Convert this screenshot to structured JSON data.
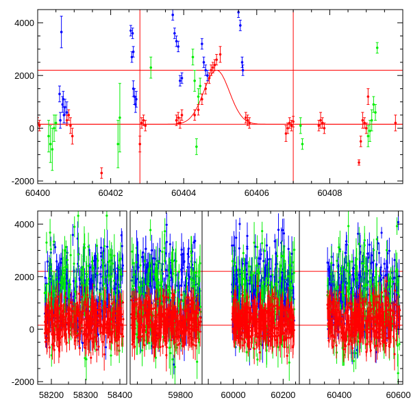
{
  "chart_data": [
    {
      "type": "scatter",
      "xlim": [
        60400,
        60410
      ],
      "ylim": [
        -2100,
        4500
      ],
      "x_ticks": [
        60400,
        60402,
        60404,
        60406,
        60408
      ],
      "x_tick_labels": [
        "60400",
        "60402",
        "60404",
        "60406",
        "60408"
      ],
      "y_ticks": [
        -2000,
        0,
        2000,
        4000
      ],
      "y_tick_labels": [
        "-2000",
        "0",
        "2000",
        "4000"
      ],
      "grid": false,
      "colors": {
        "red": "#ff0000",
        "green": "#00ee00",
        "blue": "#0000ff"
      },
      "reference_lines": {
        "horizontal": [
          2200,
          150
        ],
        "vertical": [
          60402.8,
          60407.0
        ]
      },
      "model_curve": {
        "baseline": 150,
        "peak": 2200,
        "center": 60404.9,
        "width": 0.35
      },
      "series": [
        {
          "color": "blue",
          "points": [
            [
              60400.65,
              3650,
              600
            ],
            [
              60400.6,
              1300,
              300
            ],
            [
              60400.7,
              1100,
              300
            ],
            [
              60400.75,
              800,
              300
            ],
            [
              60400.8,
              600,
              400
            ],
            [
              60400.62,
              300,
              300
            ],
            [
              60400.68,
              900,
              300
            ],
            [
              60400.72,
              500,
              300
            ],
            [
              60402.55,
              3700,
              200
            ],
            [
              60402.6,
              3600,
              200
            ],
            [
              60402.62,
              2900,
              200
            ],
            [
              60402.58,
              2700,
              200
            ],
            [
              60402.62,
              1500,
              300
            ],
            [
              60402.65,
              1200,
              300
            ],
            [
              60402.7,
              1100,
              300
            ],
            [
              60402.68,
              900,
              300
            ],
            [
              60403.7,
              4300,
              200
            ],
            [
              60403.75,
              3600,
              200
            ],
            [
              60403.8,
              3300,
              200
            ],
            [
              60403.85,
              3100,
              200
            ],
            [
              60403.9,
              1800,
              200
            ],
            [
              60403.95,
              1900,
              200
            ],
            [
              60404.5,
              3200,
              200
            ],
            [
              60404.55,
              2500,
              200
            ],
            [
              60404.6,
              2200,
              200
            ],
            [
              60404.65,
              2000,
              200
            ],
            [
              60405.5,
              4400,
              200
            ],
            [
              60405.55,
              3900,
              200
            ],
            [
              60405.6,
              2500,
              200
            ],
            [
              60405.62,
              2200,
              200
            ]
          ]
        },
        {
          "color": "green",
          "points": [
            [
              60400.3,
              -300,
              600
            ],
            [
              60400.35,
              -600,
              700
            ],
            [
              60400.4,
              -800,
              800
            ],
            [
              60400.45,
              0,
              500
            ],
            [
              60400.5,
              200,
              300
            ],
            [
              60402.2,
              -600,
              900
            ],
            [
              60402.25,
              400,
              1300
            ],
            [
              60403.1,
              2300,
              400
            ],
            [
              60404.25,
              2700,
              300
            ],
            [
              60404.3,
              1800,
              400
            ],
            [
              60404.35,
              -700,
              300
            ],
            [
              60404.4,
              1200,
              300
            ],
            [
              60404.45,
              1600,
              300
            ],
            [
              60407.2,
              100,
              300
            ],
            [
              60407.25,
              -600,
              200
            ],
            [
              60409.2,
              900,
              300
            ],
            [
              60409.25,
              600,
              300
            ],
            [
              60409.15,
              300,
              400
            ],
            [
              60409.1,
              -100,
              400
            ],
            [
              60409.05,
              -300,
              400
            ],
            [
              60409.3,
              3050,
              200
            ]
          ]
        },
        {
          "color": "red",
          "points": [
            [
              60400.0,
              200,
              200
            ],
            [
              60400.05,
              100,
              200
            ],
            [
              60400.8,
              300,
              200
            ],
            [
              60400.85,
              500,
              200
            ],
            [
              60400.9,
              100,
              300
            ],
            [
              60400.95,
              -300,
              300
            ],
            [
              60401.75,
              -1700,
              200
            ],
            [
              60402.8,
              -600,
              300
            ],
            [
              60402.85,
              200,
              200
            ],
            [
              60402.9,
              300,
              200
            ],
            [
              60402.95,
              100,
              200
            ],
            [
              60403.8,
              300,
              200
            ],
            [
              60403.85,
              400,
              200
            ],
            [
              60403.9,
              200,
              200
            ],
            [
              60403.95,
              500,
              200
            ],
            [
              60404.3,
              500,
              200
            ],
            [
              60404.4,
              700,
              200
            ],
            [
              60404.5,
              1100,
              200
            ],
            [
              60404.6,
              1500,
              200
            ],
            [
              60404.7,
              1900,
              200
            ],
            [
              60404.75,
              2200,
              200
            ],
            [
              60404.8,
              2300,
              200
            ],
            [
              60404.85,
              2400,
              200
            ],
            [
              60404.9,
              2600,
              200
            ],
            [
              60405.0,
              2800,
              300
            ],
            [
              60405.7,
              400,
              200
            ],
            [
              60405.75,
              300,
              200
            ],
            [
              60405.8,
              200,
              200
            ],
            [
              60406.8,
              -200,
              300
            ],
            [
              60406.85,
              0,
              200
            ],
            [
              60406.9,
              200,
              200
            ],
            [
              60406.95,
              100,
              200
            ],
            [
              60407.0,
              250,
              200
            ],
            [
              60407.7,
              100,
              200
            ],
            [
              60407.75,
              300,
              300
            ],
            [
              60407.8,
              200,
              200
            ],
            [
              60407.85,
              0,
              200
            ],
            [
              60408.8,
              -1300,
              100
            ],
            [
              60408.85,
              -500,
              200
            ],
            [
              60408.9,
              300,
              300
            ],
            [
              60408.95,
              200,
              200
            ],
            [
              60409.0,
              0,
              200
            ],
            [
              60409.05,
              1200,
              300
            ],
            [
              60409.8,
              200,
              300
            ]
          ]
        }
      ]
    },
    {
      "type": "scatter",
      "ylim": [
        -2100,
        4500
      ],
      "y_ticks": [
        -2000,
        0,
        2000,
        4000
      ],
      "y_tick_labels": [
        "-2000",
        "0",
        "2000",
        "4000"
      ],
      "grid": false,
      "reference_lines": {
        "horizontal": [
          2200,
          150
        ]
      },
      "segments": [
        {
          "xlim": [
            58160,
            58420
          ],
          "x_ticks": [
            58200,
            58300,
            58400
          ],
          "x_tick_labels": [
            "58200",
            "58300",
            "58400"
          ],
          "data_range": [
            58180,
            58410
          ]
        },
        {
          "xlim": [
            59625,
            59875
          ],
          "x_ticks": [
            59800
          ],
          "x_tick_labels": [
            "59800"
          ],
          "data_range": [
            59630,
            59870
          ]
        },
        {
          "xlim": [
            59875,
            60265
          ],
          "x_ticks": [
            60000,
            60200
          ],
          "x_tick_labels": [
            "60000",
            "60200"
          ],
          "data_range": [
            59995,
            60245
          ]
        },
        {
          "xlim": [
            60265,
            60615
          ],
          "x_ticks": [
            60400,
            60600
          ],
          "x_tick_labels": [
            "60400",
            "60600"
          ],
          "data_range": [
            60360,
            60605
          ]
        }
      ],
      "series_colors": [
        "#0000ff",
        "#00ee00",
        "#ff0000"
      ]
    }
  ]
}
